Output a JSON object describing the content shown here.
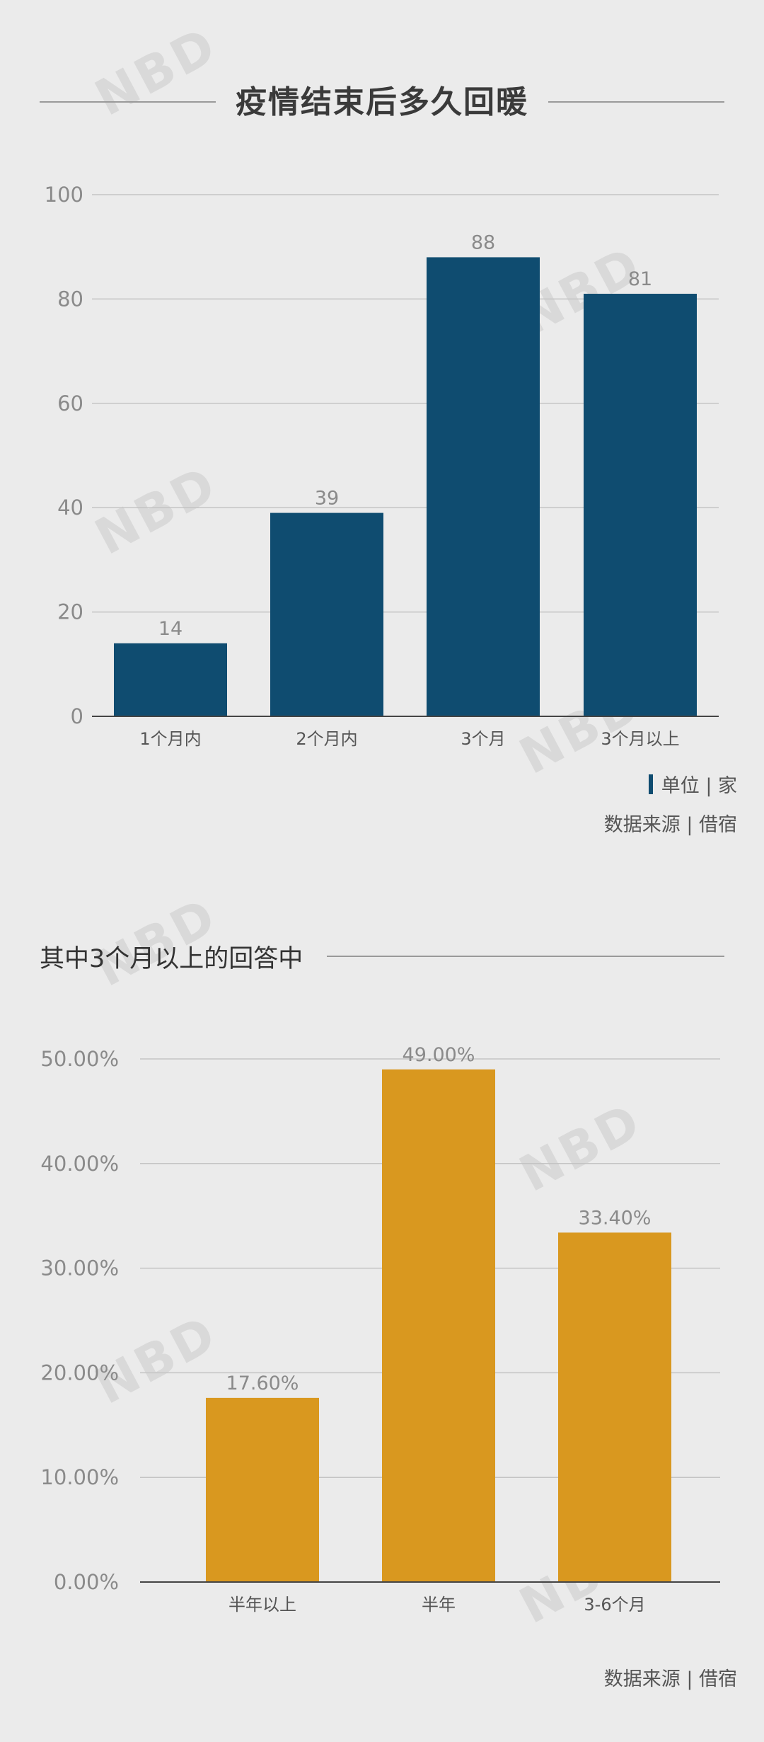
{
  "chart_data": [
    {
      "type": "bar",
      "title": "疫情结束后多久回暖",
      "categories": [
        "1个月内",
        "2个月内",
        "3个月",
        "3个月以上"
      ],
      "values": [
        14,
        39,
        88,
        81
      ],
      "data_labels": [
        "14",
        "39",
        "88",
        "81"
      ],
      "ylim": [
        0,
        100
      ],
      "yticks": [
        "0",
        "20",
        "40",
        "60",
        "80",
        "100"
      ],
      "grid": true,
      "bar_color": "#0f4c70",
      "legend": "单位 | 家",
      "source": "数据来源 | 借宿"
    },
    {
      "type": "bar",
      "title": "其中3个月以上的回答中",
      "categories": [
        "半年以上",
        "半年",
        "3-6个月"
      ],
      "values": [
        17.6,
        49.0,
        33.4
      ],
      "data_labels": [
        "17.60%",
        "49.00%",
        "33.40%"
      ],
      "ylim": [
        0,
        50
      ],
      "yticks": [
        "0.00%",
        "10.00%",
        "20.00%",
        "30.00%",
        "40.00%",
        "50.00%"
      ],
      "grid": true,
      "bar_color": "#d9981f",
      "source": "数据来源 | 借宿"
    }
  ],
  "watermark": "NBD"
}
